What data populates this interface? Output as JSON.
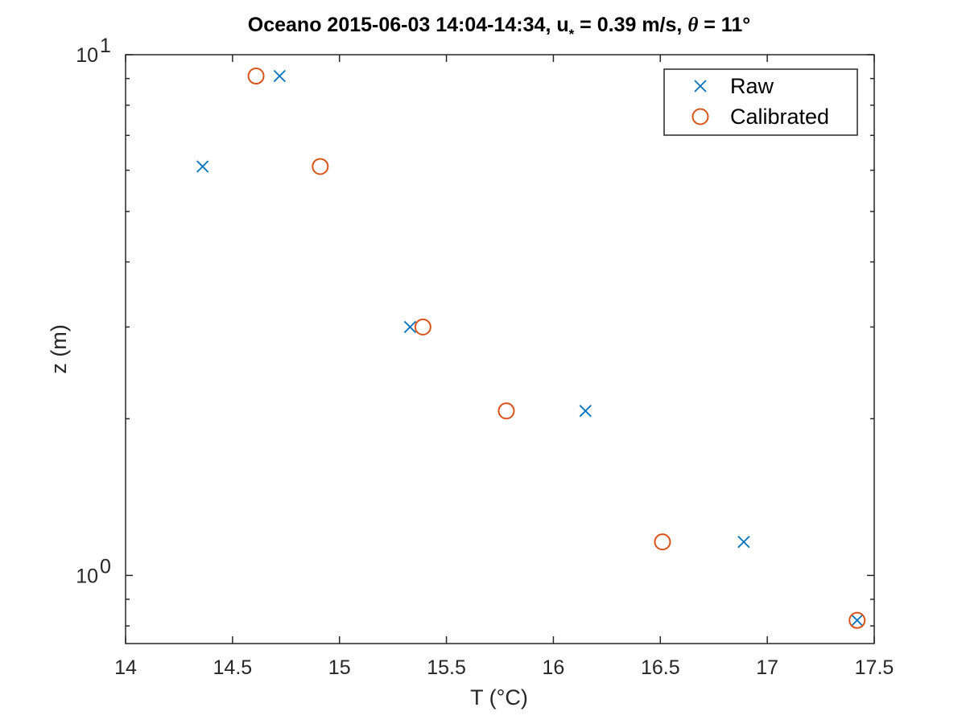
{
  "chart_data": {
    "type": "scatter",
    "title": {
      "prefix": "Oceano 2015-06-03 14:04-14:34, u",
      "subscript": "*",
      "middle": " = 0.39 m/s, ",
      "theta": "θ",
      "suffix": " = 11°"
    },
    "xlabel": "T (°C)",
    "ylabel": "z (m)",
    "xlim": [
      14,
      17.5
    ],
    "ylim": [
      0.74,
      10
    ],
    "yscale": "log",
    "xticks": [
      "14",
      "14.5",
      "15",
      "15.5",
      "16",
      "16.5",
      "17",
      "17.5"
    ],
    "yticks": [
      {
        "value": 1,
        "base": "10",
        "exp": "0"
      },
      {
        "value": 10,
        "base": "10",
        "exp": "1"
      }
    ],
    "grid": false,
    "legend_position": "top-right",
    "series": [
      {
        "name": "Raw",
        "marker": "x",
        "color": "#0072BD",
        "points": [
          [
            17.42,
            0.82
          ],
          [
            16.89,
            1.16
          ],
          [
            16.15,
            2.07
          ],
          [
            15.33,
            3.0
          ],
          [
            14.36,
            6.1
          ],
          [
            14.72,
            9.1
          ]
        ]
      },
      {
        "name": "Calibrated",
        "marker": "o",
        "color": "#D95319",
        "points": [
          [
            17.42,
            0.82
          ],
          [
            16.51,
            1.16
          ],
          [
            15.78,
            2.07
          ],
          [
            15.39,
            3.0
          ],
          [
            14.91,
            6.1
          ],
          [
            14.61,
            9.1
          ]
        ]
      }
    ]
  }
}
